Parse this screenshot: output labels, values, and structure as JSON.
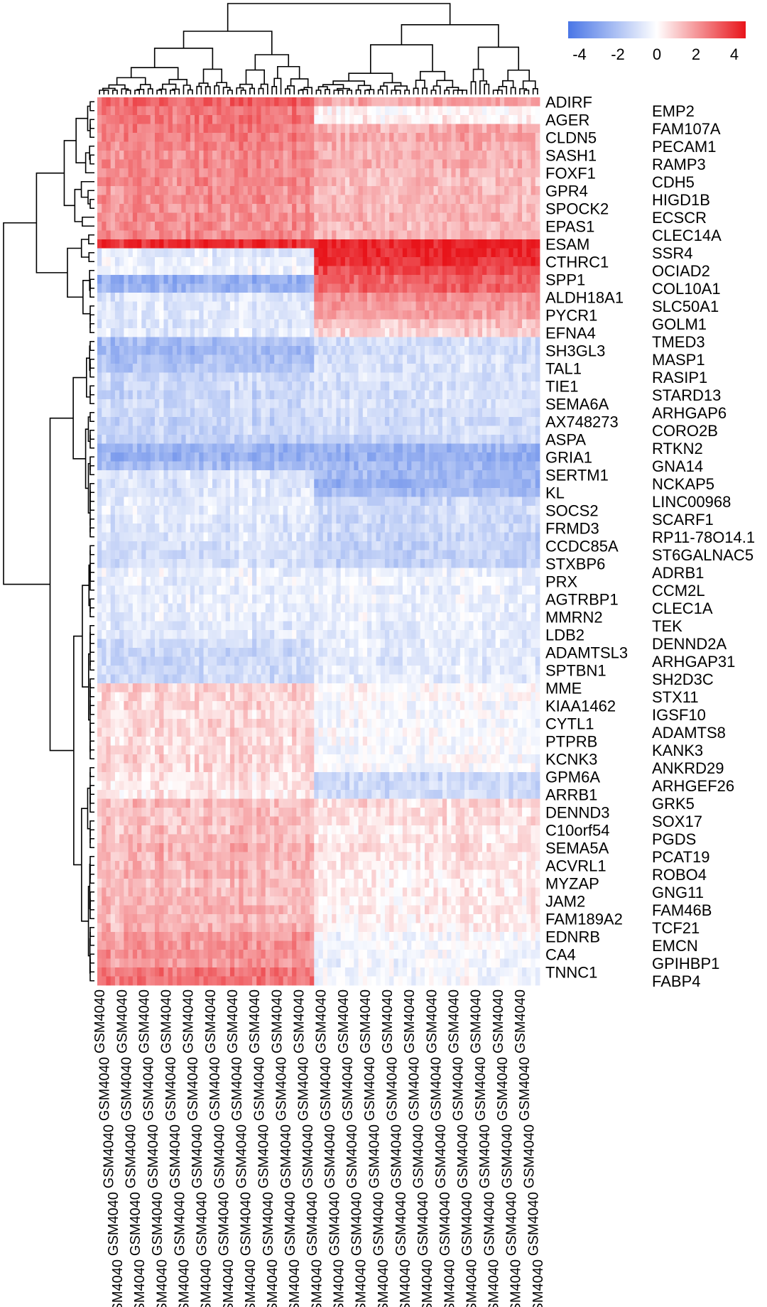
{
  "chart_data": {
    "type": "heatmap",
    "title": "",
    "row_clustering": true,
    "column_clustering": true,
    "n_columns": 100,
    "column_groups": [
      {
        "columns": 49
      },
      {
        "columns": 51
      }
    ],
    "column_label_prefix": "GSM4040",
    "color_scale": {
      "min": -4.5,
      "max": 4.5,
      "low_color": "#4a76e6",
      "mid_color": "#ffffff",
      "high_color": "#e8141a",
      "ticks": [
        "4",
        "2",
        "0",
        "-2",
        "-4"
      ],
      "tick_values": [
        4,
        2,
        0,
        -2,
        -4
      ],
      "legend_position": "top-right"
    },
    "rows": [
      {
        "gene": "ADIRF",
        "left": 3.0,
        "right": 1.8
      },
      {
        "gene": "EMP2",
        "left": 2.6,
        "right": 0.2
      },
      {
        "gene": "AGER",
        "left": 2.6,
        "right": 0.3
      },
      {
        "gene": "FAM107A",
        "left": 2.5,
        "right": 1.6
      },
      {
        "gene": "CLDN5",
        "left": 2.4,
        "right": 1.7
      },
      {
        "gene": "PECAM1",
        "left": 2.3,
        "right": 1.6
      },
      {
        "gene": "SASH1",
        "left": 2.2,
        "right": 1.5
      },
      {
        "gene": "RAMP3",
        "left": 2.3,
        "right": 1.6
      },
      {
        "gene": "FOXF1",
        "left": 2.2,
        "right": 1.4
      },
      {
        "gene": "CDH5",
        "left": 2.2,
        "right": 1.3
      },
      {
        "gene": "GPR4",
        "left": 2.1,
        "right": 1.3
      },
      {
        "gene": "HIGD1B",
        "left": 2.2,
        "right": 1.4
      },
      {
        "gene": "SPOCK2",
        "left": 2.1,
        "right": 1.4
      },
      {
        "gene": "ECSCR",
        "left": 2.2,
        "right": 1.5
      },
      {
        "gene": "EPAS1",
        "left": 2.1,
        "right": 1.4
      },
      {
        "gene": "CLEC14A",
        "left": 2.2,
        "right": 1.5
      },
      {
        "gene": "ESAM",
        "left": 4.0,
        "right": 4.2
      },
      {
        "gene": "SSR4",
        "left": -0.8,
        "right": 4.2
      },
      {
        "gene": "CTHRC1",
        "left": -0.5,
        "right": 4.0
      },
      {
        "gene": "OCIAD2",
        "left": -0.4,
        "right": 3.5
      },
      {
        "gene": "SPP1",
        "left": -2.6,
        "right": 3.0
      },
      {
        "gene": "COL10A1",
        "left": -2.4,
        "right": 3.0
      },
      {
        "gene": "ALDH18A1",
        "left": -0.8,
        "right": 2.2
      },
      {
        "gene": "SLC50A1",
        "left": -0.8,
        "right": 2.0
      },
      {
        "gene": "PYCR1",
        "left": -0.7,
        "right": 1.8
      },
      {
        "gene": "GOLM1",
        "left": -0.8,
        "right": 1.2
      },
      {
        "gene": "EFNA4",
        "left": -0.7,
        "right": 0.9
      },
      {
        "gene": "TMED3",
        "left": -2.2,
        "right": -1.0
      },
      {
        "gene": "SH3GL3",
        "left": -2.3,
        "right": -1.1
      },
      {
        "gene": "MASP1",
        "left": -2.1,
        "right": -1.0
      },
      {
        "gene": "TAL1",
        "left": -2.0,
        "right": -0.9
      },
      {
        "gene": "RASIP1",
        "left": -1.3,
        "right": -0.9
      },
      {
        "gene": "TIE1",
        "left": -1.3,
        "right": -1.0
      },
      {
        "gene": "STARD13",
        "left": -1.4,
        "right": -1.0
      },
      {
        "gene": "SEMA6A",
        "left": -1.2,
        "right": -0.9
      },
      {
        "gene": "ARHGAP6",
        "left": -1.3,
        "right": -1.1
      },
      {
        "gene": "AX748273",
        "left": -1.4,
        "right": -1.2
      },
      {
        "gene": "CORO2B",
        "left": -1.3,
        "right": -1.0
      },
      {
        "gene": "ASPA",
        "left": -1.5,
        "right": -1.3
      },
      {
        "gene": "RTKN2",
        "left": -2.5,
        "right": -2.4
      },
      {
        "gene": "GRIA1",
        "left": -2.6,
        "right": -2.6
      },
      {
        "gene": "GNA14",
        "left": -2.2,
        "right": -2.3
      },
      {
        "gene": "SERTM1",
        "left": -0.8,
        "right": -2.3
      },
      {
        "gene": "NCKAP5",
        "left": -0.9,
        "right": -2.5
      },
      {
        "gene": "KL",
        "left": -0.8,
        "right": -2.1
      },
      {
        "gene": "LINC00968",
        "left": -0.7,
        "right": -1.3
      },
      {
        "gene": "SOCS2",
        "left": -0.6,
        "right": -1.1
      },
      {
        "gene": "SCARF1",
        "left": -0.8,
        "right": -1.3
      },
      {
        "gene": "FRMD3",
        "left": -0.9,
        "right": -1.2
      },
      {
        "gene": "RP11-78O14.1",
        "left": -0.8,
        "right": -1.4
      },
      {
        "gene": "CCDC85A",
        "left": -1.0,
        "right": -1.4
      },
      {
        "gene": "ST6GALNAC5",
        "left": -1.1,
        "right": -1.5
      },
      {
        "gene": "STXBP6",
        "left": -1.0,
        "right": -1.4
      },
      {
        "gene": "ADRB1",
        "left": -0.5,
        "right": -0.5
      },
      {
        "gene": "PRX",
        "left": -0.5,
        "right": -0.4
      },
      {
        "gene": "CCM2L",
        "left": -0.6,
        "right": -0.5
      },
      {
        "gene": "AGTRBP1",
        "left": -0.5,
        "right": -0.4
      },
      {
        "gene": "CLEC1A",
        "left": -0.6,
        "right": -0.5
      },
      {
        "gene": "MMRN2",
        "left": -0.6,
        "right": -0.5
      },
      {
        "gene": "TEK",
        "left": -0.7,
        "right": -0.5
      },
      {
        "gene": "LDB2",
        "left": -0.7,
        "right": -0.6
      },
      {
        "gene": "DENND2A",
        "left": -1.2,
        "right": -0.6
      },
      {
        "gene": "ADAMTSL3",
        "left": -1.3,
        "right": -0.6
      },
      {
        "gene": "ARHGAP31",
        "left": -1.3,
        "right": -0.7
      },
      {
        "gene": "SPTBN1",
        "left": -1.2,
        "right": -0.6
      },
      {
        "gene": "SH2D3C",
        "left": -1.2,
        "right": -0.6
      },
      {
        "gene": "MME",
        "left": 0.9,
        "right": 0.1
      },
      {
        "gene": "STX11",
        "left": 0.8,
        "right": 0.0
      },
      {
        "gene": "KIAA1462",
        "left": 0.8,
        "right": -0.2
      },
      {
        "gene": "IGSF10",
        "left": 0.7,
        "right": -0.1
      },
      {
        "gene": "CYTL1",
        "left": 0.7,
        "right": -0.2
      },
      {
        "gene": "ADAMTS8",
        "left": 0.8,
        "right": -0.1
      },
      {
        "gene": "PTPRB",
        "left": 0.7,
        "right": -0.1
      },
      {
        "gene": "KANK3",
        "left": 0.7,
        "right": -0.2
      },
      {
        "gene": "KCNK3",
        "left": 0.8,
        "right": -0.1
      },
      {
        "gene": "ANKRD29",
        "left": 0.7,
        "right": -0.2
      },
      {
        "gene": "GPM6A",
        "left": 0.5,
        "right": -1.3
      },
      {
        "gene": "ARHGEF26",
        "left": 0.5,
        "right": -1.2
      },
      {
        "gene": "ARRB1",
        "left": 0.4,
        "right": -1.1
      },
      {
        "gene": "GRK5",
        "left": 1.3,
        "right": 0.7
      },
      {
        "gene": "DENND3",
        "left": 1.2,
        "right": 0.6
      },
      {
        "gene": "SOX17",
        "left": 1.3,
        "right": 0.6
      },
      {
        "gene": "C10orf54",
        "left": 1.2,
        "right": 0.5
      },
      {
        "gene": "PGDS",
        "left": 1.3,
        "right": 0.5
      },
      {
        "gene": "SEMA5A",
        "left": 1.5,
        "right": 0.6
      },
      {
        "gene": "PCAT19",
        "left": 1.4,
        "right": 0.5
      },
      {
        "gene": "ACVRL1",
        "left": 1.3,
        "right": 0.5
      },
      {
        "gene": "ROBO4",
        "left": 1.4,
        "right": 0.4
      },
      {
        "gene": "MYZAP",
        "left": 1.2,
        "right": 0.3
      },
      {
        "gene": "GNG11",
        "left": 1.3,
        "right": 0.4
      },
      {
        "gene": "JAM2",
        "left": 1.3,
        "right": 0.3
      },
      {
        "gene": "FAM46B",
        "left": 1.4,
        "right": 0.4
      },
      {
        "gene": "FAM189A2",
        "left": 1.3,
        "right": 0.3
      },
      {
        "gene": "TCF21",
        "left": 1.5,
        "right": 0.3
      },
      {
        "gene": "EDNRB",
        "left": 2.0,
        "right": -0.2
      },
      {
        "gene": "EMCN",
        "left": 2.0,
        "right": -0.1
      },
      {
        "gene": "CA4",
        "left": 2.1,
        "right": -0.2
      },
      {
        "gene": "GPIHBP1",
        "left": 2.0,
        "right": -0.3
      },
      {
        "gene": "TNNC1",
        "left": 2.6,
        "right": -0.3
      },
      {
        "gene": "FABP4",
        "left": 2.7,
        "right": -0.2
      }
    ]
  }
}
